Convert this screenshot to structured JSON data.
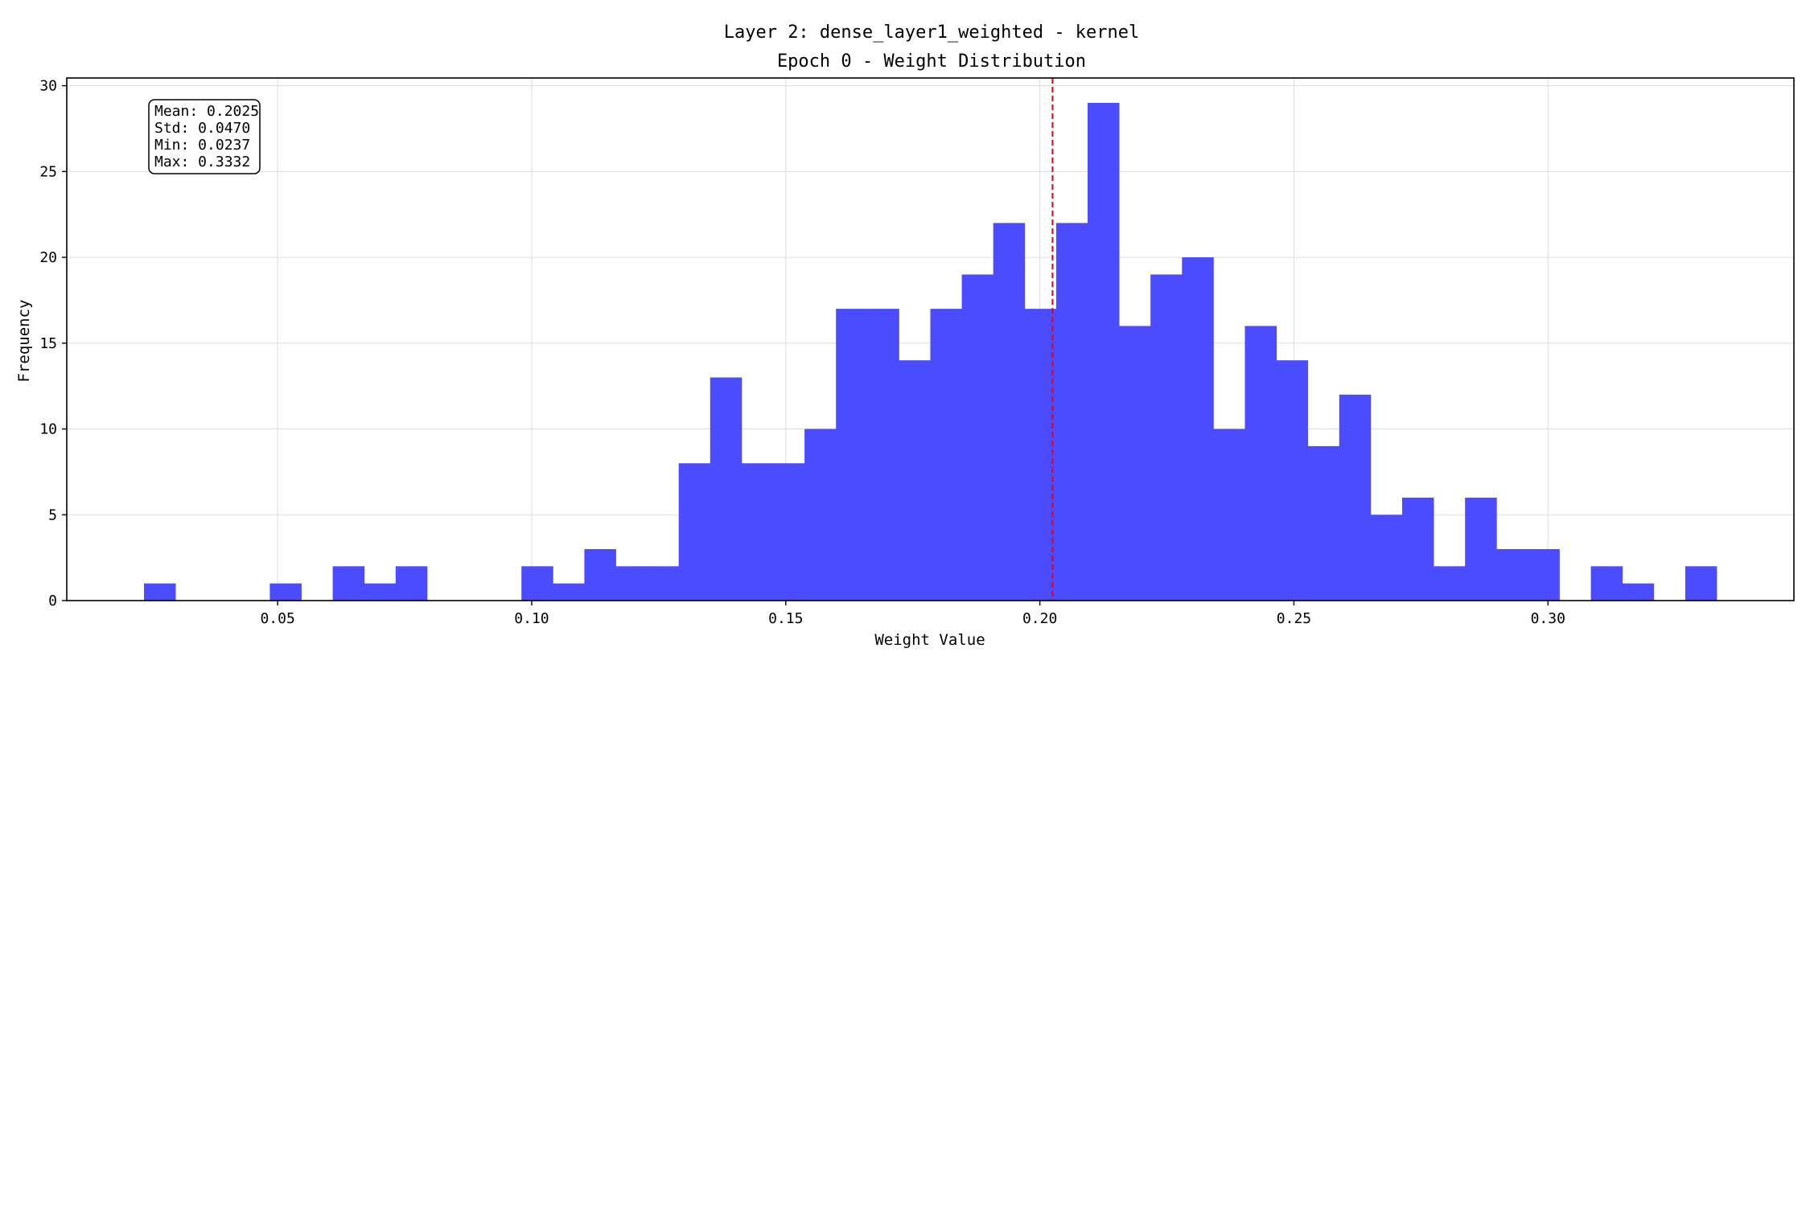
{
  "figure": {
    "title_line1": "Layer 2: dense_layer1_weighted - kernel",
    "title_line2": "Epoch 0 - Weight Distribution"
  },
  "stats": {
    "mean": "Mean: 0.2025",
    "std": "Std: 0.0470",
    "min": "Min: 0.0237",
    "max": "Max: 0.3332"
  },
  "colors": {
    "bars": "#4B4BFF",
    "mean_line": "#E8000B",
    "grid": "#dddddd"
  },
  "chart_data": {
    "type": "bar",
    "subtype": "histogram",
    "xlabel": "Weight Value",
    "ylabel": "Frequency",
    "xlim": [
      0.0085,
      0.3484
    ],
    "ylim": [
      0,
      30.45
    ],
    "xticks": [
      0.05,
      0.1,
      0.15,
      0.2,
      0.25,
      0.3
    ],
    "xtick_labels": [
      "0.05",
      "0.10",
      "0.15",
      "0.20",
      "0.25",
      "0.30"
    ],
    "yticks": [
      0,
      5,
      10,
      15,
      20,
      25,
      30
    ],
    "ytick_labels": [
      "0",
      "5",
      "10",
      "15",
      "20",
      "25",
      "30"
    ],
    "grid": true,
    "bin_start": 0.0237,
    "bin_end": 0.3332,
    "bin_count": 50,
    "counts": [
      1,
      0,
      0,
      0,
      1,
      0,
      2,
      1,
      2,
      0,
      0,
      0,
      2,
      1,
      3,
      2,
      2,
      8,
      13,
      8,
      8,
      10,
      17,
      17,
      14,
      17,
      19,
      22,
      17,
      22,
      29,
      16,
      19,
      20,
      10,
      16,
      14,
      9,
      12,
      5,
      6,
      2,
      6,
      3,
      3,
      0,
      2,
      1,
      0,
      2
    ],
    "mean_line": 0.2025
  }
}
